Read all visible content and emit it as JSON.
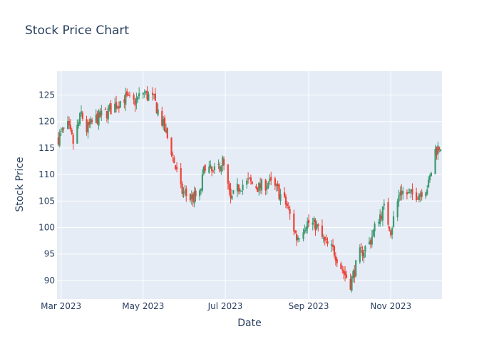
{
  "chart_data": {
    "type": "candlestick",
    "title": "Stock Price Chart",
    "xlabel": "Date",
    "ylabel": "Stock Price",
    "xlim": [
      "2023-02-26",
      "2023-12-09"
    ],
    "ylim": [
      86.5,
      129.5
    ],
    "x_ticks": [
      {
        "date": "2023-03-01",
        "label": "Mar 2023"
      },
      {
        "date": "2023-05-01",
        "label": "May 2023"
      },
      {
        "date": "2023-07-01",
        "label": "Jul 2023"
      },
      {
        "date": "2023-09-01",
        "label": "Sep 2023"
      },
      {
        "date": "2023-11-01",
        "label": "Nov 2023"
      }
    ],
    "y_ticks": [
      90,
      95,
      100,
      105,
      110,
      115,
      120,
      125
    ],
    "grid": true,
    "colors": {
      "increasing": "#3d9970",
      "decreasing": "#ef4136",
      "plot_bg": "#e5ecf6",
      "grid": "#ffffff",
      "text": "#2a3f5f"
    },
    "anchors": [
      [
        "2023-02-27",
        117.0
      ],
      [
        "2023-03-06",
        119.0
      ],
      [
        "2023-03-10",
        116.0
      ],
      [
        "2023-03-16",
        121.5
      ],
      [
        "2023-03-20",
        118.5
      ],
      [
        "2023-03-27",
        120.5
      ],
      [
        "2023-04-03",
        121.5
      ],
      [
        "2023-04-10",
        123.0
      ],
      [
        "2023-04-17",
        124.5
      ],
      [
        "2023-04-24",
        123.5
      ],
      [
        "2023-05-01",
        125.5
      ],
      [
        "2023-05-09",
        124.0
      ],
      [
        "2023-05-15",
        120.0
      ],
      [
        "2023-05-22",
        114.5
      ],
      [
        "2023-05-29",
        107.0
      ],
      [
        "2023-06-05",
        105.5
      ],
      [
        "2023-06-12",
        106.0
      ],
      [
        "2023-06-16",
        112.0
      ],
      [
        "2023-06-22",
        110.0
      ],
      [
        "2023-06-29",
        112.5
      ],
      [
        "2023-07-05",
        105.0
      ],
      [
        "2023-07-12",
        108.0
      ],
      [
        "2023-07-19",
        108.5
      ],
      [
        "2023-07-26",
        107.5
      ],
      [
        "2023-08-02",
        108.5
      ],
      [
        "2023-08-09",
        107.0
      ],
      [
        "2023-08-16",
        104.0
      ],
      [
        "2023-08-23",
        98.0
      ],
      [
        "2023-08-30",
        101.0
      ],
      [
        "2023-09-06",
        100.5
      ],
      [
        "2023-09-13",
        97.0
      ],
      [
        "2023-09-20",
        95.5
      ],
      [
        "2023-09-27",
        91.5
      ],
      [
        "2023-10-02",
        89.5
      ],
      [
        "2023-10-09",
        95.0
      ],
      [
        "2023-10-16",
        97.0
      ],
      [
        "2023-10-23",
        102.0
      ],
      [
        "2023-10-27",
        103.5
      ],
      [
        "2023-11-01",
        99.5
      ],
      [
        "2023-11-08",
        107.0
      ],
      [
        "2023-11-15",
        106.0
      ],
      [
        "2023-11-22",
        106.5
      ],
      [
        "2023-11-29",
        108.0
      ],
      [
        "2023-12-04",
        114.5
      ],
      [
        "2023-12-08",
        115.5
      ]
    ]
  }
}
